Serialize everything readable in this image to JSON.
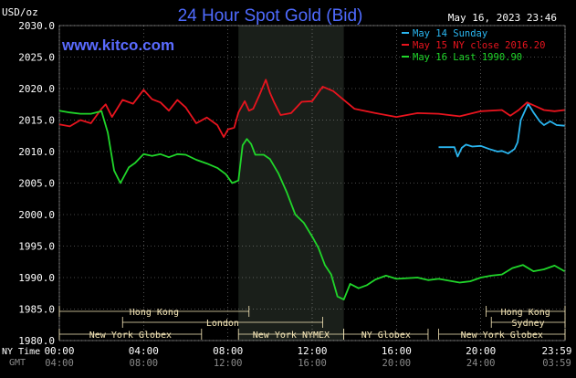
{
  "header": {
    "unit": "USD/oz",
    "title": "24 Hour Spot Gold (Bid)",
    "timestamp": "May 16, 2023 23:46",
    "brand": "www.kitco.com"
  },
  "axis_labels": {
    "nytime": "NY Time",
    "gmt": "GMT"
  },
  "colors": {
    "background": "#000000",
    "grid": "#ffffff",
    "highlight": "#1a1f1a",
    "title": "#4f6bff",
    "brand": "#5a6bff",
    "may14": "#2ab6f0",
    "may15": "#e8141e",
    "may16": "#20d62a",
    "session_bg": "#f7e8b8",
    "axis_text": "#ffffff",
    "gmt_text": "#8a8a8a"
  },
  "sessions": {
    "row1": [
      {
        "label": "Hong Kong",
        "start": 0,
        "end": 9
      },
      {
        "label": "Hong Kong",
        "start": 20.25,
        "end": 24
      }
    ],
    "row2": [
      {
        "label": "London",
        "start": 3,
        "end": 12.5
      },
      {
        "label": "Sydney",
        "start": 20.5,
        "end": 24
      }
    ],
    "row3": [
      {
        "label": "New York Globex",
        "start": 0,
        "end": 6.75
      },
      {
        "label": "New York NYMEX",
        "start": 8.5,
        "end": 13.5
      },
      {
        "label": "NY Globex",
        "start": 13.5,
        "end": 17.5
      },
      {
        "label": "New York Globex",
        "start": 18,
        "end": 24
      }
    ]
  },
  "chart_data": {
    "type": "line",
    "title": "24 Hour Spot Gold (Bid)",
    "ylabel": "USD/oz",
    "ylim": [
      1980,
      2030
    ],
    "yticks": [
      "2030.0",
      "2025.0",
      "2020.0",
      "2015.0",
      "2010.0",
      "2005.0",
      "2000.0",
      "1995.0",
      "1990.0",
      "1985.0",
      "1980.0"
    ],
    "xlim": [
      0,
      24
    ],
    "xticks_ny": [
      "00:00",
      "04:00",
      "08:00",
      "12:00",
      "16:00",
      "20:00",
      "23:59"
    ],
    "xticks_gmt": [
      "04:00",
      "08:00",
      "12:00",
      "16:00",
      "20:00",
      "24:00",
      "03:59"
    ],
    "highlight_range": [
      8.5,
      13.5
    ],
    "legend": "top-right",
    "grid": true,
    "series": [
      {
        "name": "May 14 Sunday",
        "color": "#2ab6f0",
        "x": [
          18.0,
          18.75,
          18.9,
          19.1,
          19.3,
          19.6,
          20.0,
          20.4,
          20.8,
          21.0,
          21.3,
          21.6,
          21.75,
          21.9,
          22.1,
          22.25,
          22.5,
          22.8,
          23.0,
          23.3,
          23.6,
          23.98
        ],
        "y": [
          2010.7,
          2010.7,
          2009.2,
          2010.6,
          2011.1,
          2010.8,
          2010.9,
          2010.4,
          2010.0,
          2010.1,
          2009.7,
          2010.4,
          2011.5,
          2015.0,
          2016.5,
          2017.6,
          2016.2,
          2014.8,
          2014.2,
          2014.8,
          2014.2,
          2014.1
        ]
      },
      {
        "name": "May 15 NY close 2016.20",
        "color": "#e8141e",
        "x": [
          0.0,
          0.5,
          1.0,
          1.5,
          2.0,
          2.2,
          2.5,
          3.0,
          3.5,
          4.0,
          4.4,
          4.8,
          5.2,
          5.6,
          6.0,
          6.5,
          7.0,
          7.5,
          7.8,
          8.0,
          8.3,
          8.5,
          8.8,
          9.0,
          9.2,
          9.5,
          9.8,
          10.0,
          10.2,
          10.5,
          11.0,
          11.5,
          12.0,
          12.5,
          13.0,
          13.5,
          14.0,
          15.0,
          16.0,
          17.0,
          18.0,
          19.0,
          20.0,
          21.0,
          21.4,
          21.8,
          22.2,
          22.6,
          23.0,
          23.5,
          23.98
        ],
        "y": [
          2014.3,
          2014.0,
          2015.0,
          2014.5,
          2016.8,
          2017.5,
          2015.5,
          2018.2,
          2017.6,
          2019.8,
          2018.3,
          2017.8,
          2016.5,
          2018.2,
          2017.0,
          2014.5,
          2015.4,
          2014.2,
          2012.3,
          2013.5,
          2013.8,
          2016.2,
          2018.0,
          2016.5,
          2016.8,
          2019.0,
          2021.4,
          2019.3,
          2017.8,
          2015.8,
          2016.1,
          2017.9,
          2018.0,
          2020.3,
          2019.6,
          2018.2,
          2016.8,
          2016.1,
          2015.5,
          2016.1,
          2016.0,
          2015.6,
          2016.4,
          2016.6,
          2015.7,
          2016.6,
          2017.8,
          2017.2,
          2016.6,
          2016.4,
          2016.6
        ]
      },
      {
        "name": "May 16 Last 1990.90",
        "color": "#20d62a",
        "x": [
          0.0,
          0.5,
          1.0,
          1.5,
          2.0,
          2.3,
          2.6,
          2.9,
          3.3,
          3.6,
          4.0,
          4.4,
          4.8,
          5.2,
          5.6,
          6.0,
          6.5,
          7.0,
          7.5,
          7.9,
          8.2,
          8.5,
          8.7,
          8.9,
          9.1,
          9.3,
          9.7,
          10.0,
          10.4,
          10.8,
          11.2,
          11.6,
          12.0,
          12.3,
          12.6,
          12.9,
          13.2,
          13.5,
          13.8,
          14.2,
          14.6,
          15.0,
          15.5,
          16.0,
          17.0,
          17.5,
          18.0,
          19.0,
          19.5,
          20.0,
          20.5,
          21.0,
          21.5,
          22.0,
          22.5,
          23.0,
          23.5,
          23.98
        ],
        "y": [
          2016.5,
          2016.2,
          2016.0,
          2016.0,
          2016.4,
          2013.0,
          2007.0,
          2005.0,
          2007.5,
          2008.2,
          2009.6,
          2009.3,
          2009.6,
          2009.1,
          2009.6,
          2009.5,
          2008.7,
          2008.1,
          2007.4,
          2006.4,
          2005.0,
          2005.4,
          2011.0,
          2012.0,
          2011.2,
          2009.5,
          2009.5,
          2008.8,
          2006.5,
          2003.5,
          2000.0,
          1998.7,
          1996.5,
          1994.7,
          1992.0,
          1990.5,
          1987.0,
          1986.5,
          1989.0,
          1988.3,
          1988.8,
          1989.7,
          1990.3,
          1989.8,
          1990.0,
          1989.6,
          1989.8,
          1989.2,
          1989.4,
          1990.0,
          1990.3,
          1990.5,
          1991.5,
          1992.0,
          1991.0,
          1991.3,
          1991.9,
          1991.0
        ]
      }
    ]
  }
}
